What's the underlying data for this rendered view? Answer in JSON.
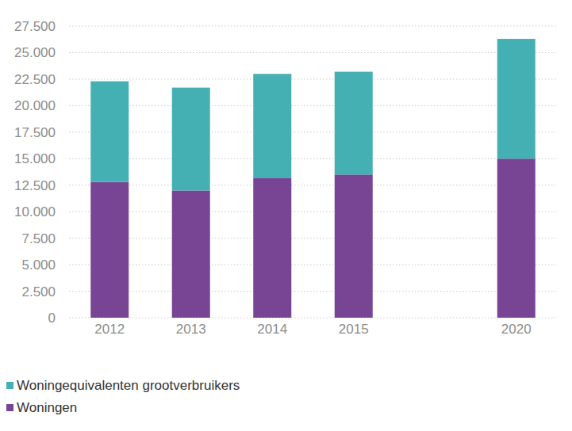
{
  "chart_data": {
    "type": "bar",
    "stacked": true,
    "grid": true,
    "legend": "bottom-left",
    "categories": [
      "2012",
      "2013",
      "2014",
      "2015",
      null,
      "2020"
    ],
    "series": [
      {
        "name": "Woningen",
        "color": "#774593",
        "values": [
          12800,
          12000,
          13200,
          13500,
          null,
          15000
        ]
      },
      {
        "name": "Woningequivalenten grootverbruikers",
        "color": "#45b0b4",
        "values": [
          9500,
          9700,
          9800,
          9700,
          null,
          11300
        ]
      }
    ],
    "ylim": [
      0,
      27500
    ],
    "yticks": [
      0,
      {
        "value": 2500,
        "label": "2.500"
      },
      {
        "value": 5000,
        "label": "5.000"
      },
      {
        "value": 7500,
        "label": "7.500"
      },
      {
        "value": 10000,
        "label": "10.000"
      },
      {
        "value": 12500,
        "label": "12.500"
      },
      {
        "value": 15000,
        "label": "15.000"
      },
      {
        "value": 17500,
        "label": "17.500"
      },
      {
        "value": 20000,
        "label": "20.000"
      },
      {
        "value": 22500,
        "label": "22.500"
      },
      {
        "value": 25000,
        "label": "25.000"
      },
      {
        "value": 27500,
        "label": "27.500"
      }
    ]
  }
}
